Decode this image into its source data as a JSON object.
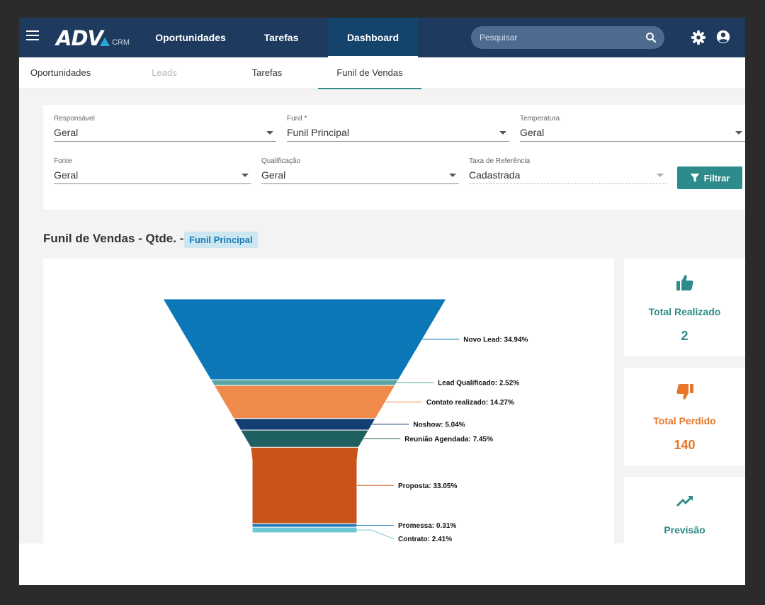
{
  "app": {
    "logo_text": "ADV",
    "logo_sub": "CRM"
  },
  "topnav": {
    "items": [
      {
        "label": "Oportunidades"
      },
      {
        "label": "Tarefas"
      },
      {
        "label": "Dashboard"
      }
    ],
    "search": {
      "placeholder": "Pesquisar"
    }
  },
  "subnav": {
    "tabs": [
      {
        "label": "Oportunidades"
      },
      {
        "label": "Leads"
      },
      {
        "label": "Tarefas"
      },
      {
        "label": "Funil de Vendas"
      }
    ]
  },
  "filters": {
    "responsavel": {
      "label": "Responsável",
      "value": "Geral"
    },
    "funil": {
      "label": "Funil *",
      "value": "Funil Principal"
    },
    "temperatura": {
      "label": "Temperatura",
      "value": "Geral"
    },
    "fonte": {
      "label": "Fonte",
      "value": "Geral"
    },
    "qualificacao": {
      "label": "Qualificação",
      "value": "Geral"
    },
    "taxa": {
      "label": "Taxa de Referência",
      "value": "Cadastrada"
    },
    "button_label": "Filtrar"
  },
  "section": {
    "title": "Funil de Vendas - Qtde. -",
    "chip": "Funil Principal"
  },
  "chart_data": {
    "type": "funnel",
    "stages": [
      {
        "label": "Novo Lead: 34.94%",
        "name": "Novo Lead",
        "value": 34.94,
        "color": "#0b77b7"
      },
      {
        "label": "Lead Qualificado: 2.52%",
        "name": "Lead Qualificado",
        "value": 2.52,
        "color": "#5aa6a6"
      },
      {
        "label": "Contato realizado: 14.27%",
        "name": "Contato realizado",
        "value": 14.27,
        "color": "#ef8a4a"
      },
      {
        "label": "Noshow: 5.04%",
        "name": "Noshow",
        "value": 5.04,
        "color": "#123e74"
      },
      {
        "label": "Reunião Agendada: 7.45%",
        "name": "Reunião Agendada",
        "value": 7.45,
        "color": "#1e5f5f"
      },
      {
        "label": "Proposta: 33.05%",
        "name": "Proposta",
        "value": 33.05,
        "color": "#c9541a"
      },
      {
        "label": "Promessa: 0.31%",
        "name": "Promessa",
        "value": 0.31,
        "color": "#1f77b4"
      },
      {
        "label": "Contrato: 2.41%",
        "name": "Contrato",
        "value": 2.41,
        "color": "#6cc7d5"
      }
    ]
  },
  "stats": {
    "realizado": {
      "title": "Total Realizado",
      "value": "2",
      "icon": "thumbs-up-icon",
      "color": "#2e8b8b"
    },
    "perdido": {
      "title": "Total Perdido",
      "value": "140",
      "icon": "thumbs-down-icon",
      "color": "#e6762a"
    },
    "previsao": {
      "title": "Previsão",
      "icon": "trending-up-icon",
      "color": "#2e8b8b"
    }
  }
}
